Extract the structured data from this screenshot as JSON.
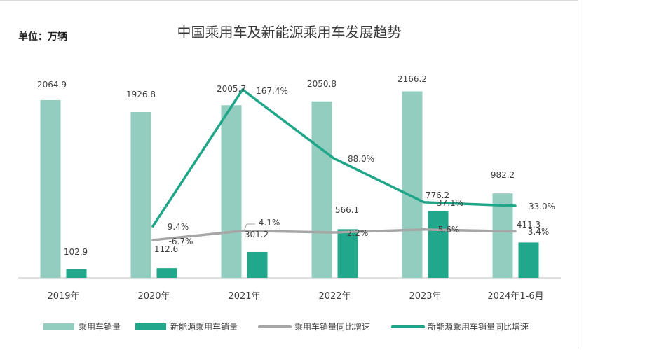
{
  "chart_data": {
    "type": "bar",
    "title": "中国乘用车及新能源乘用车发展趋势",
    "unit_label": "单位：万辆",
    "categories": [
      "2019年",
      "2020年",
      "2021年",
      "2022年",
      "2023年",
      "2024年1-6月"
    ],
    "series": [
      {
        "name": "乘用车销量",
        "type": "bar",
        "color": "#93cdbf",
        "values": [
          2064.9,
          1926.8,
          2005.7,
          2050.8,
          2166.2,
          982.2
        ],
        "labels": [
          "2064.9",
          "1926.8",
          "2005.7",
          "2050.8",
          "2166.2",
          "982.2"
        ]
      },
      {
        "name": "新能源乘用车销量",
        "type": "bar",
        "color": "#21a78b",
        "values": [
          102.9,
          112.6,
          301.2,
          566.1,
          776.2,
          411.3
        ],
        "labels": [
          "102.9",
          "112.6",
          "301.2",
          "566.1",
          "776.2",
          "411.3"
        ]
      },
      {
        "name": "乘用车销量同比增速",
        "type": "line",
        "color": "#a6a6a6",
        "values": [
          null,
          -6.7,
          4.1,
          2.2,
          5.6,
          3.4
        ],
        "labels": [
          null,
          "-6.7%",
          "4.1%",
          "2.2%",
          "5.6%",
          "3.4%"
        ]
      },
      {
        "name": "新能源乘用车销量同比增速",
        "type": "line",
        "color": "#1fa588",
        "values": [
          null,
          9.4,
          167.4,
          88.0,
          37.1,
          33.0
        ],
        "labels": [
          null,
          "9.4%",
          "167.4%",
          "88.0%",
          "37.1%",
          "33.0%"
        ]
      }
    ],
    "ylim": [
      0,
      2500
    ],
    "y2lim": [
      -20,
      190
    ],
    "legend_position": "bottom",
    "grid": false
  }
}
